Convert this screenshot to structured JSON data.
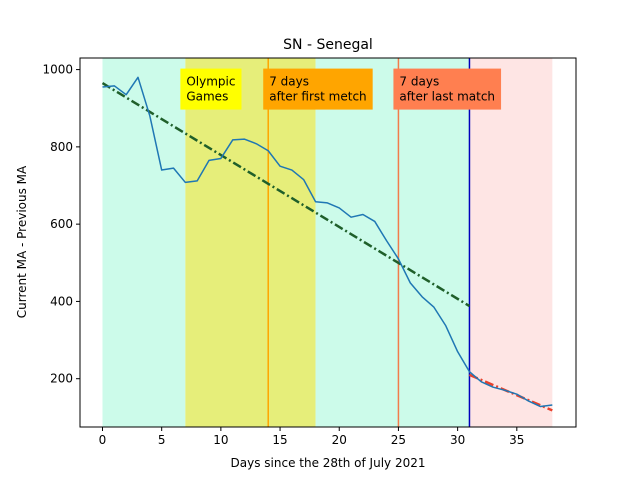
{
  "chart_data": {
    "type": "line",
    "title": "SN - Senegal",
    "xlabel": "Days since the 28th of July 2021",
    "ylabel": "Current MA - Previous MA",
    "xlim": [
      -1.9,
      40
    ],
    "ylim": [
      75,
      1030
    ],
    "xticks": [
      0,
      5,
      10,
      15,
      20,
      25,
      30,
      35
    ],
    "yticks": [
      200,
      400,
      600,
      800,
      1000
    ],
    "grid": false,
    "series": [
      {
        "color": "#1f77b4",
        "x": [
          0,
          1,
          2,
          3,
          4,
          5,
          6,
          7,
          8,
          9,
          10,
          11,
          12,
          13,
          14,
          15,
          16,
          17,
          18,
          19,
          20,
          21,
          22,
          23,
          24,
          25,
          26,
          27,
          28,
          29,
          30,
          31,
          32,
          33,
          34,
          35,
          36,
          37,
          38
        ],
        "values": [
          955,
          958,
          935,
          980,
          880,
          740,
          745,
          708,
          712,
          765,
          770,
          818,
          820,
          808,
          790,
          750,
          740,
          715,
          658,
          655,
          642,
          618,
          625,
          607,
          557,
          510,
          448,
          412,
          385,
          337,
          270,
          218,
          192,
          178,
          170,
          160,
          142,
          128,
          132
        ]
      }
    ],
    "trend_lines": [
      {
        "color": "#1f5f2a",
        "style": "dash-dot",
        "x": [
          0,
          31
        ],
        "values": [
          965,
          388
        ]
      },
      {
        "color": "#e8412b",
        "style": "dash-dot",
        "x": [
          31,
          38
        ],
        "values": [
          210,
          118
        ]
      }
    ],
    "spans": [
      {
        "x0": 0,
        "x1": 7,
        "color": "#ccfbea"
      },
      {
        "x0": 7,
        "x1": 18,
        "color": "#e6ee7a"
      },
      {
        "x0": 18,
        "x1": 31,
        "color": "#ccfbea"
      },
      {
        "x0": 31,
        "x1": 38,
        "color": "#fee5e4"
      }
    ],
    "vlines": [
      {
        "x": 14,
        "color": "#ffa500"
      },
      {
        "x": 25,
        "color": "#f27b4b"
      },
      {
        "x": 31,
        "color": "#0000bb"
      }
    ],
    "annotations": [
      {
        "lines": [
          "Olympic",
          "Games"
        ],
        "x": 7,
        "y": 1000,
        "bg": "#ffff00"
      },
      {
        "lines": [
          "7 days",
          "after first metch"
        ],
        "x": 14,
        "y": 1000,
        "bg": "#ffa500"
      },
      {
        "lines": [
          "7 days",
          "after last match"
        ],
        "x": 25,
        "y": 1000,
        "bg": "#ff7f50"
      }
    ]
  }
}
